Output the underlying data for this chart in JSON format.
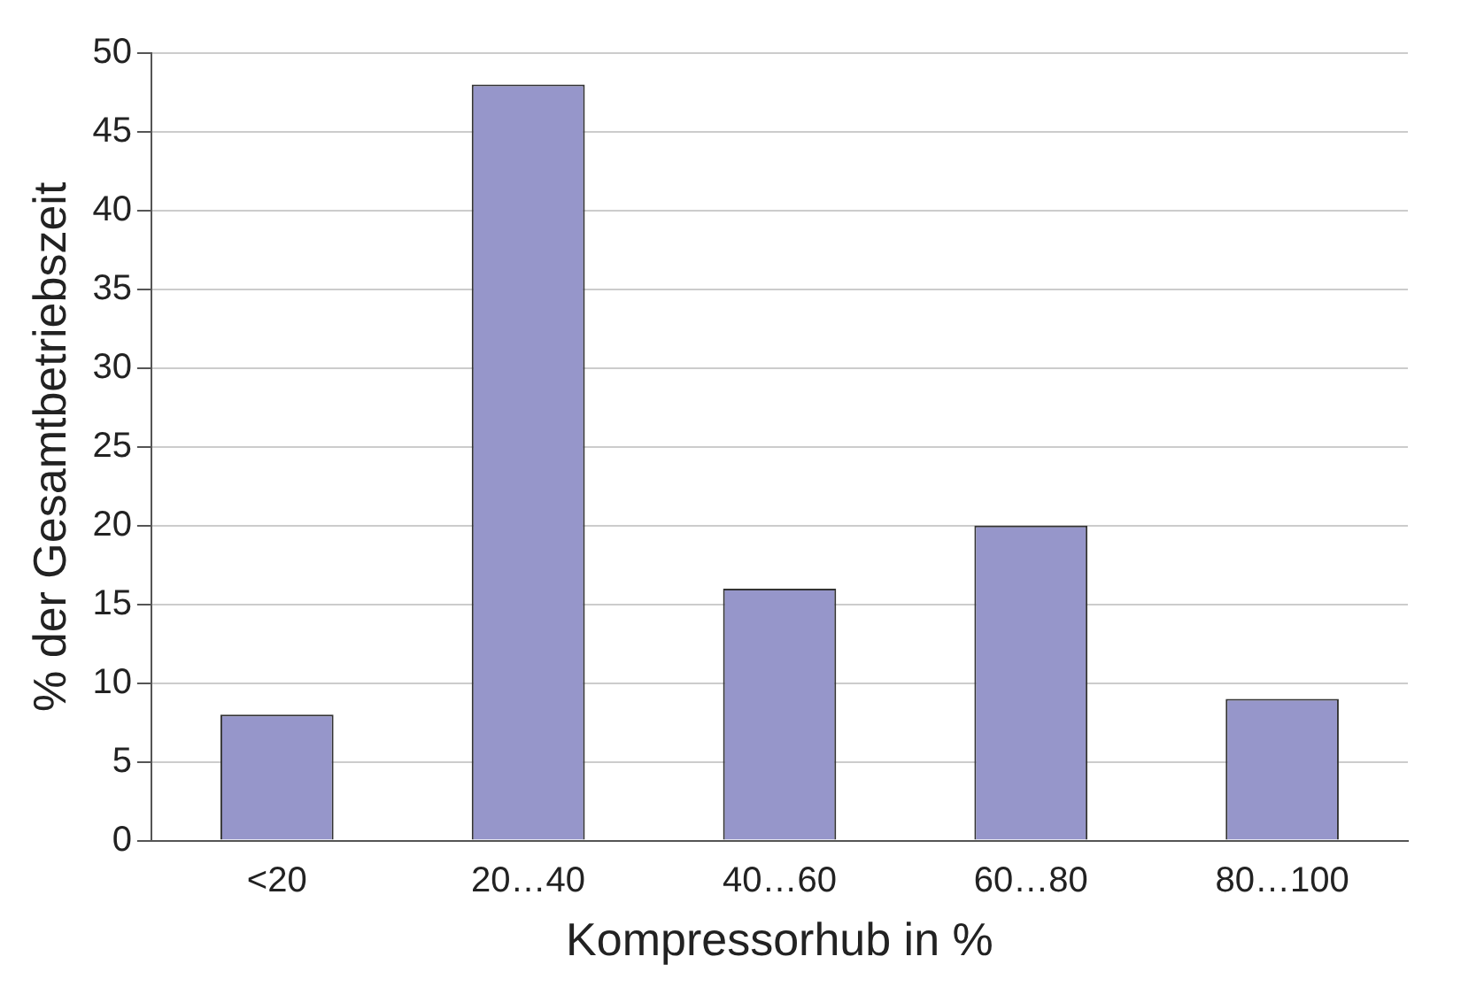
{
  "chart_data": {
    "type": "bar",
    "xlabel": "Kompressorhub in %",
    "ylabel": "% der Gesamtbetriebszeit",
    "categories": [
      "<20",
      "20…40",
      "40…60",
      "60…80",
      "80…100"
    ],
    "values": [
      8,
      48,
      16,
      20,
      9
    ],
    "color": "#9696ca",
    "ylim": [
      0,
      50
    ],
    "yticks": [
      0,
      5,
      10,
      15,
      20,
      25,
      30,
      35,
      40,
      45,
      50
    ],
    "grid": "y"
  }
}
